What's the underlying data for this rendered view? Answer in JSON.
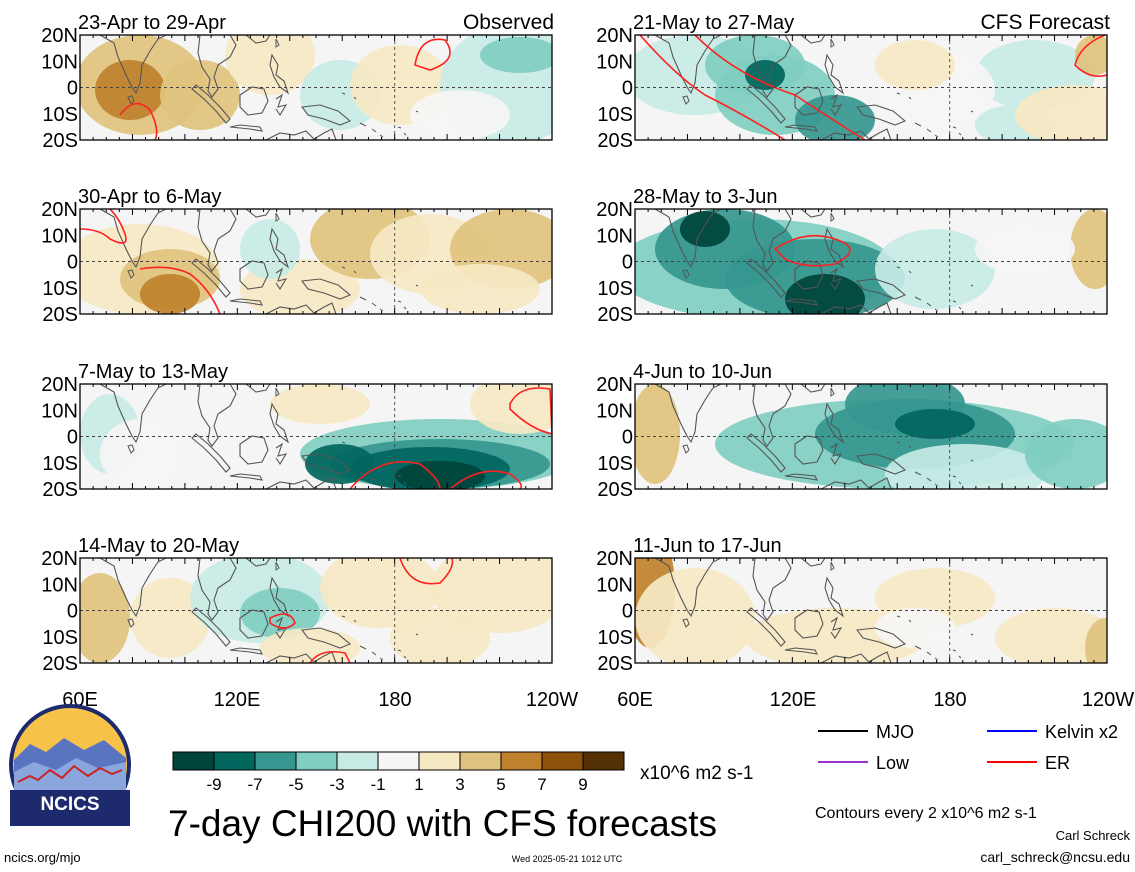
{
  "figure": {
    "title": "7-day CHI200 with CFS forecasts",
    "column_labels": {
      "observed": "Observed",
      "forecast": "CFS Forecast"
    },
    "lat_labels": [
      "20N",
      "10N",
      "0",
      "10S",
      "20S"
    ],
    "lon_labels": [
      "60E",
      "120E",
      "180",
      "120W",
      "60E",
      "120E",
      "180",
      "120W"
    ],
    "footer": {
      "url": "ncics.org/mjo",
      "timestamp": "Wed 2025-05-21 1012 UTC",
      "author": "Carl Schreck",
      "email": "carl_schreck@ncsu.edu",
      "contours_note": "Contours every 2 x10^6 m2 s-1"
    }
  },
  "logo": {
    "text": "NCICS"
  },
  "panels": [
    {
      "id": "obs-1",
      "label": "23-Apr to 29-Apr",
      "column": "observed",
      "row": 0
    },
    {
      "id": "obs-2",
      "label": "30-Apr to 6-May",
      "column": "observed",
      "row": 1
    },
    {
      "id": "obs-3",
      "label": "7-May to 13-May",
      "column": "observed",
      "row": 2
    },
    {
      "id": "obs-4",
      "label": "14-May to 20-May",
      "column": "observed",
      "row": 3
    },
    {
      "id": "fc-1",
      "label": "21-May to 27-May",
      "column": "forecast",
      "row": 0
    },
    {
      "id": "fc-2",
      "label": "28-May to 3-Jun",
      "column": "forecast",
      "row": 1
    },
    {
      "id": "fc-3",
      "label": "4-Jun to 10-Jun",
      "column": "forecast",
      "row": 2
    },
    {
      "id": "fc-4",
      "label": "11-Jun to 17-Jun",
      "column": "forecast",
      "row": 3
    }
  ],
  "colorbar": {
    "unit": "x10^6 m2 s-1",
    "tick_labels": [
      "-9",
      "-7",
      "-5",
      "-3",
      "-1",
      "1",
      "3",
      "5",
      "7",
      "9"
    ],
    "colors": [
      "#00443b",
      "#01665e",
      "#35978f",
      "#80cdc1",
      "#c7eae5",
      "#f5f5f5",
      "#f6e8c3",
      "#dfc27d",
      "#bf812d",
      "#8c510a",
      "#543005"
    ]
  },
  "legend": [
    {
      "label": "MJO",
      "color": "#000000"
    },
    {
      "label": "Kelvin x2",
      "color": "#0000ff"
    },
    {
      "label": "Low",
      "color": "#9933cc"
    },
    {
      "label": "ER",
      "color": "#ff0000"
    }
  ]
}
